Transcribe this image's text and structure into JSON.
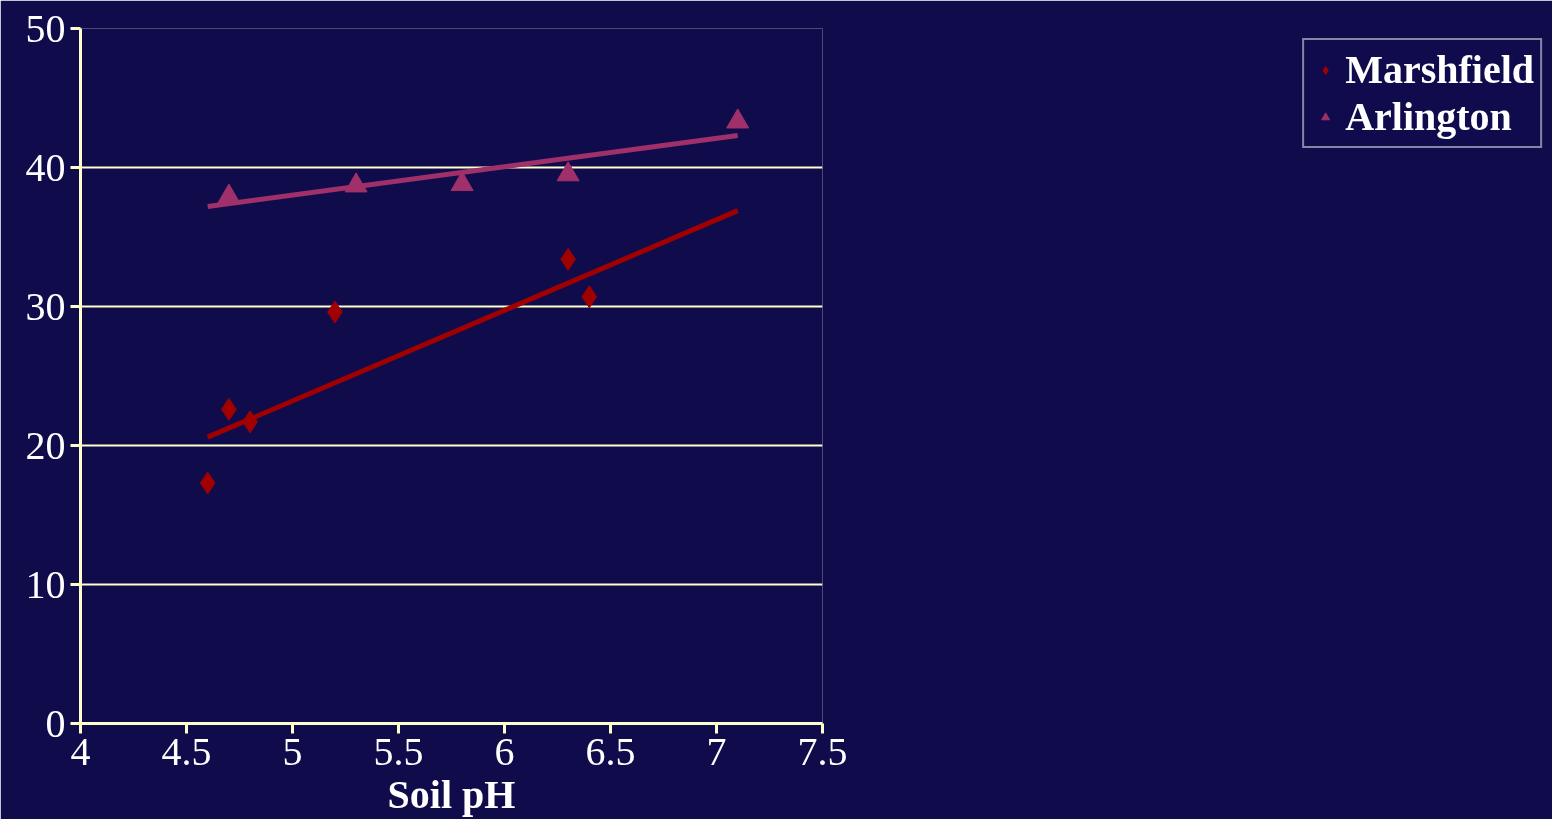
{
  "chart_data": {
    "type": "scatter",
    "xlabel": "Soil pH",
    "xlim": [
      4,
      7.5
    ],
    "xticks": [
      4,
      4.5,
      5,
      5.5,
      6,
      6.5,
      7,
      7.5
    ],
    "ylim": [
      0,
      50
    ],
    "yticks": [
      0,
      10,
      20,
      30,
      40,
      50
    ],
    "grid": "y",
    "legend": "right",
    "series": [
      {
        "name": "Marshfield",
        "color": "#a00000",
        "marker": "diamond",
        "x": [
          4.6,
          4.7,
          4.8,
          5.2,
          6.3,
          6.4
        ],
        "values": [
          17.3,
          22.6,
          21.7,
          29.6,
          33.4,
          30.7
        ]
      },
      {
        "name": "Arlington",
        "color": "#a0306a",
        "marker": "triangle",
        "x": [
          4.7,
          5.3,
          5.8,
          6.3,
          7.1
        ],
        "values": [
          37.9,
          38.7,
          38.8,
          39.5,
          43.3
        ]
      },
      {
        "type": "line",
        "color": "#a00000",
        "marker": "none",
        "x": [
          4.6,
          7.1
        ],
        "values": [
          20.6,
          36.9
        ]
      },
      {
        "type": "line",
        "color": "#a0306a",
        "marker": "none",
        "x": [
          4.6,
          7.1
        ],
        "values": [
          37.2,
          42.3
        ]
      }
    ]
  }
}
